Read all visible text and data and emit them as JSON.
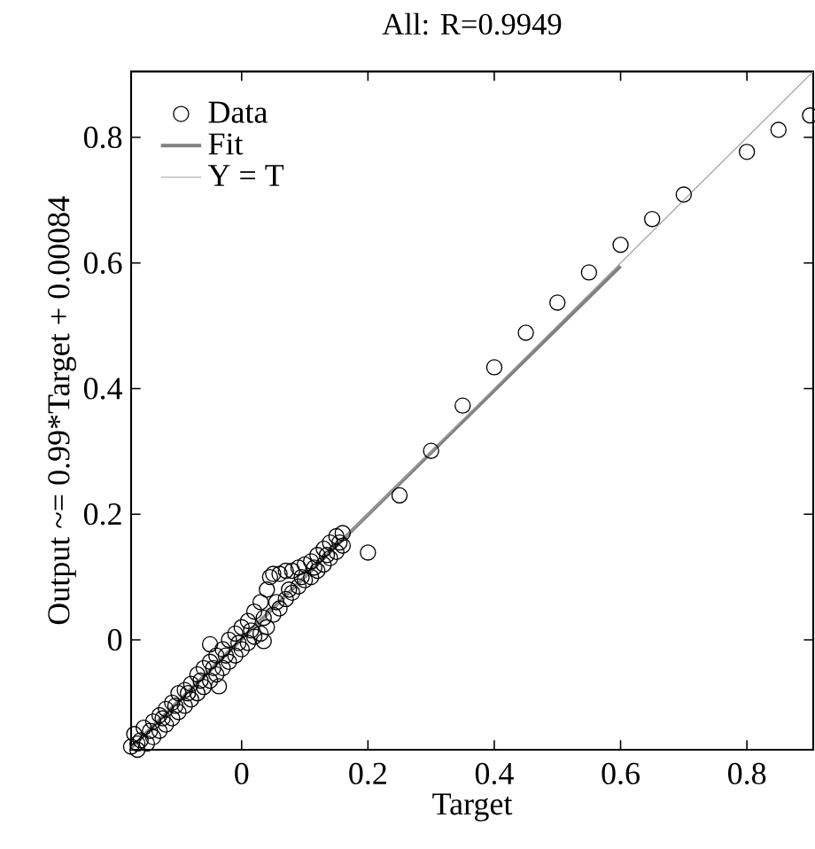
{
  "chart_data": {
    "type": "scatter",
    "title": "All: R=0.9949",
    "xlabel": "Target",
    "ylabel": "Output ~= 0.99*Target + 0.00084",
    "xlim": [
      -0.175,
      0.905
    ],
    "ylim": [
      -0.175,
      0.905
    ],
    "xticks": [
      0,
      0.2,
      0.4,
      0.6,
      0.8
    ],
    "yticks": [
      0,
      0.2,
      0.4,
      0.6,
      0.8
    ],
    "legend": "top left",
    "series": [
      {
        "name": "Data",
        "color": "#000000",
        "marker": "circle",
        "x": [
          -0.165,
          -0.145,
          -0.125,
          -0.105,
          -0.085,
          -0.065,
          -0.045,
          -0.025,
          -0.005,
          0.015,
          0.035,
          0.055,
          0.075,
          0.095,
          0.115,
          0.135,
          0.155,
          -0.175,
          -0.17,
          -0.165,
          -0.16,
          -0.155,
          -0.15,
          -0.14,
          -0.14,
          -0.13,
          -0.13,
          -0.12,
          -0.12,
          -0.11,
          -0.11,
          -0.1,
          -0.1,
          -0.09,
          -0.09,
          -0.08,
          -0.08,
          -0.07,
          -0.07,
          -0.06,
          -0.06,
          -0.05,
          -0.05,
          -0.05,
          -0.04,
          -0.036,
          -0.04,
          -0.03,
          -0.03,
          -0.02,
          -0.02,
          -0.01,
          -0.01,
          0,
          0,
          0.01,
          0.01,
          0.02,
          0.02,
          0.03,
          0.03,
          0.035,
          0.04,
          0.04,
          0.045,
          0.05,
          0.05,
          0.06,
          0.06,
          0.07,
          0.07,
          0.08,
          0.08,
          0.09,
          0.09,
          0.1,
          0.1,
          0.11,
          0.11,
          0.12,
          0.12,
          0.13,
          0.13,
          0.14,
          0.14,
          0.15,
          0.15,
          0.16,
          0.16,
          0.2,
          0.25,
          0.3,
          0.35,
          0.4,
          0.45,
          0.5,
          0.55,
          0.6,
          0.65,
          0.7,
          0.8,
          0.85,
          0.9
        ],
        "values": [
          -0.165,
          -0.145,
          -0.125,
          -0.105,
          -0.085,
          -0.065,
          -0.045,
          -0.025,
          -0.005,
          0.015,
          0.035,
          0.06,
          0.08,
          0.1,
          0.115,
          0.135,
          0.155,
          -0.17,
          -0.15,
          -0.175,
          -0.16,
          -0.14,
          -0.165,
          -0.13,
          -0.155,
          -0.12,
          -0.145,
          -0.11,
          -0.135,
          -0.1,
          -0.125,
          -0.085,
          -0.115,
          -0.08,
          -0.105,
          -0.07,
          -0.095,
          -0.055,
          -0.085,
          -0.045,
          -0.075,
          -0.007,
          -0.035,
          -0.065,
          -0.025,
          -0.074,
          -0.055,
          -0.015,
          -0.045,
          0.0,
          -0.035,
          0.01,
          -0.025,
          0.02,
          -0.015,
          0.03,
          -0.005,
          0.045,
          0.005,
          0.06,
          0.01,
          -0.002,
          0.08,
          0.02,
          0.1,
          0.105,
          0.04,
          0.105,
          0.05,
          0.11,
          0.065,
          0.11,
          0.075,
          0.115,
          0.085,
          0.12,
          0.095,
          0.125,
          0.1,
          0.135,
          0.11,
          0.145,
          0.12,
          0.155,
          0.13,
          0.165,
          0.14,
          0.17,
          0.15,
          0.139,
          0.23,
          0.301,
          0.373,
          0.434,
          0.489,
          0.537,
          0.585,
          0.629,
          0.67,
          0.709,
          0.777,
          0.812,
          0.835
        ]
      },
      {
        "name": "Fit",
        "type": "line",
        "marker": "none",
        "color": "#808080",
        "x": [
          -0.175,
          0.6
        ],
        "values": [
          -0.172,
          0.595
        ]
      },
      {
        "name": "Y = T",
        "type": "line",
        "marker": "none",
        "color": "#a0a0a0",
        "x": [
          -0.175,
          0.905
        ],
        "values": [
          -0.175,
          0.905
        ]
      }
    ]
  }
}
